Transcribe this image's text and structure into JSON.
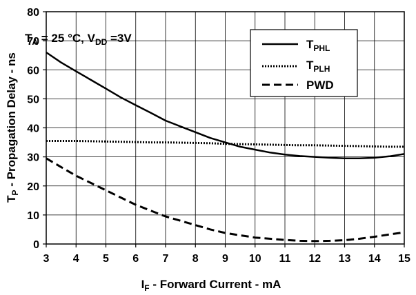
{
  "chart_data": {
    "type": "line",
    "xlabel": {
      "main": "I",
      "sub": "F",
      "rest": " - Forward Current - mA"
    },
    "ylabel": {
      "main": "T",
      "sub": "P",
      "rest": " - Propagation Delay - ns"
    },
    "xlim": [
      3,
      15
    ],
    "ylim": [
      0,
      80
    ],
    "xticks": [
      3,
      4,
      5,
      6,
      7,
      8,
      9,
      10,
      11,
      12,
      13,
      14,
      15
    ],
    "yticks": [
      0,
      10,
      20,
      30,
      40,
      50,
      60,
      70,
      80
    ],
    "grid": true,
    "annotation": {
      "t": "T",
      "a_sub": "A",
      "mid": " = 25 °C, V",
      "dd_sub": "DD",
      "end": " =3V"
    },
    "legend": {
      "position": "top-right",
      "entries": [
        {
          "main": "T",
          "sub": "PHL",
          "style": "solid"
        },
        {
          "main": "T",
          "sub": "PLH",
          "style": "dotted"
        },
        {
          "main": "PWD",
          "sub": "",
          "style": "dashed"
        }
      ]
    },
    "x": [
      3,
      3.5,
      4,
      4.5,
      5,
      5.5,
      6,
      6.5,
      7,
      7.5,
      8,
      8.5,
      9,
      9.5,
      10,
      10.5,
      11,
      11.5,
      12,
      12.5,
      13,
      13.5,
      14,
      14.5,
      15
    ],
    "series": [
      {
        "style": "solid",
        "values": [
          66,
          62.5,
          59.5,
          56.5,
          53.5,
          50.5,
          47.8,
          45.2,
          42.5,
          40.5,
          38.5,
          36.5,
          35,
          33.5,
          32.5,
          31.5,
          30.8,
          30.3,
          30,
          29.7,
          29.5,
          29.5,
          29.7,
          30.2,
          31
        ]
      },
      {
        "style": "dotted",
        "values": [
          35.5,
          35.5,
          35.5,
          35.4,
          35.3,
          35.2,
          35.1,
          35,
          35,
          34.9,
          34.8,
          34.7,
          34.5,
          34.4,
          34.3,
          34.2,
          34.1,
          34,
          34,
          33.9,
          33.8,
          33.7,
          33.6,
          33.5,
          33.5
        ]
      },
      {
        "style": "dashed",
        "values": [
          29.5,
          26.5,
          23.5,
          21,
          18.5,
          16,
          13.5,
          11.5,
          9.5,
          8,
          6.5,
          5,
          3.8,
          3,
          2.2,
          1.8,
          1.4,
          1.1,
          1,
          1.1,
          1.3,
          1.8,
          2.5,
          3.3,
          4
        ]
      }
    ]
  }
}
